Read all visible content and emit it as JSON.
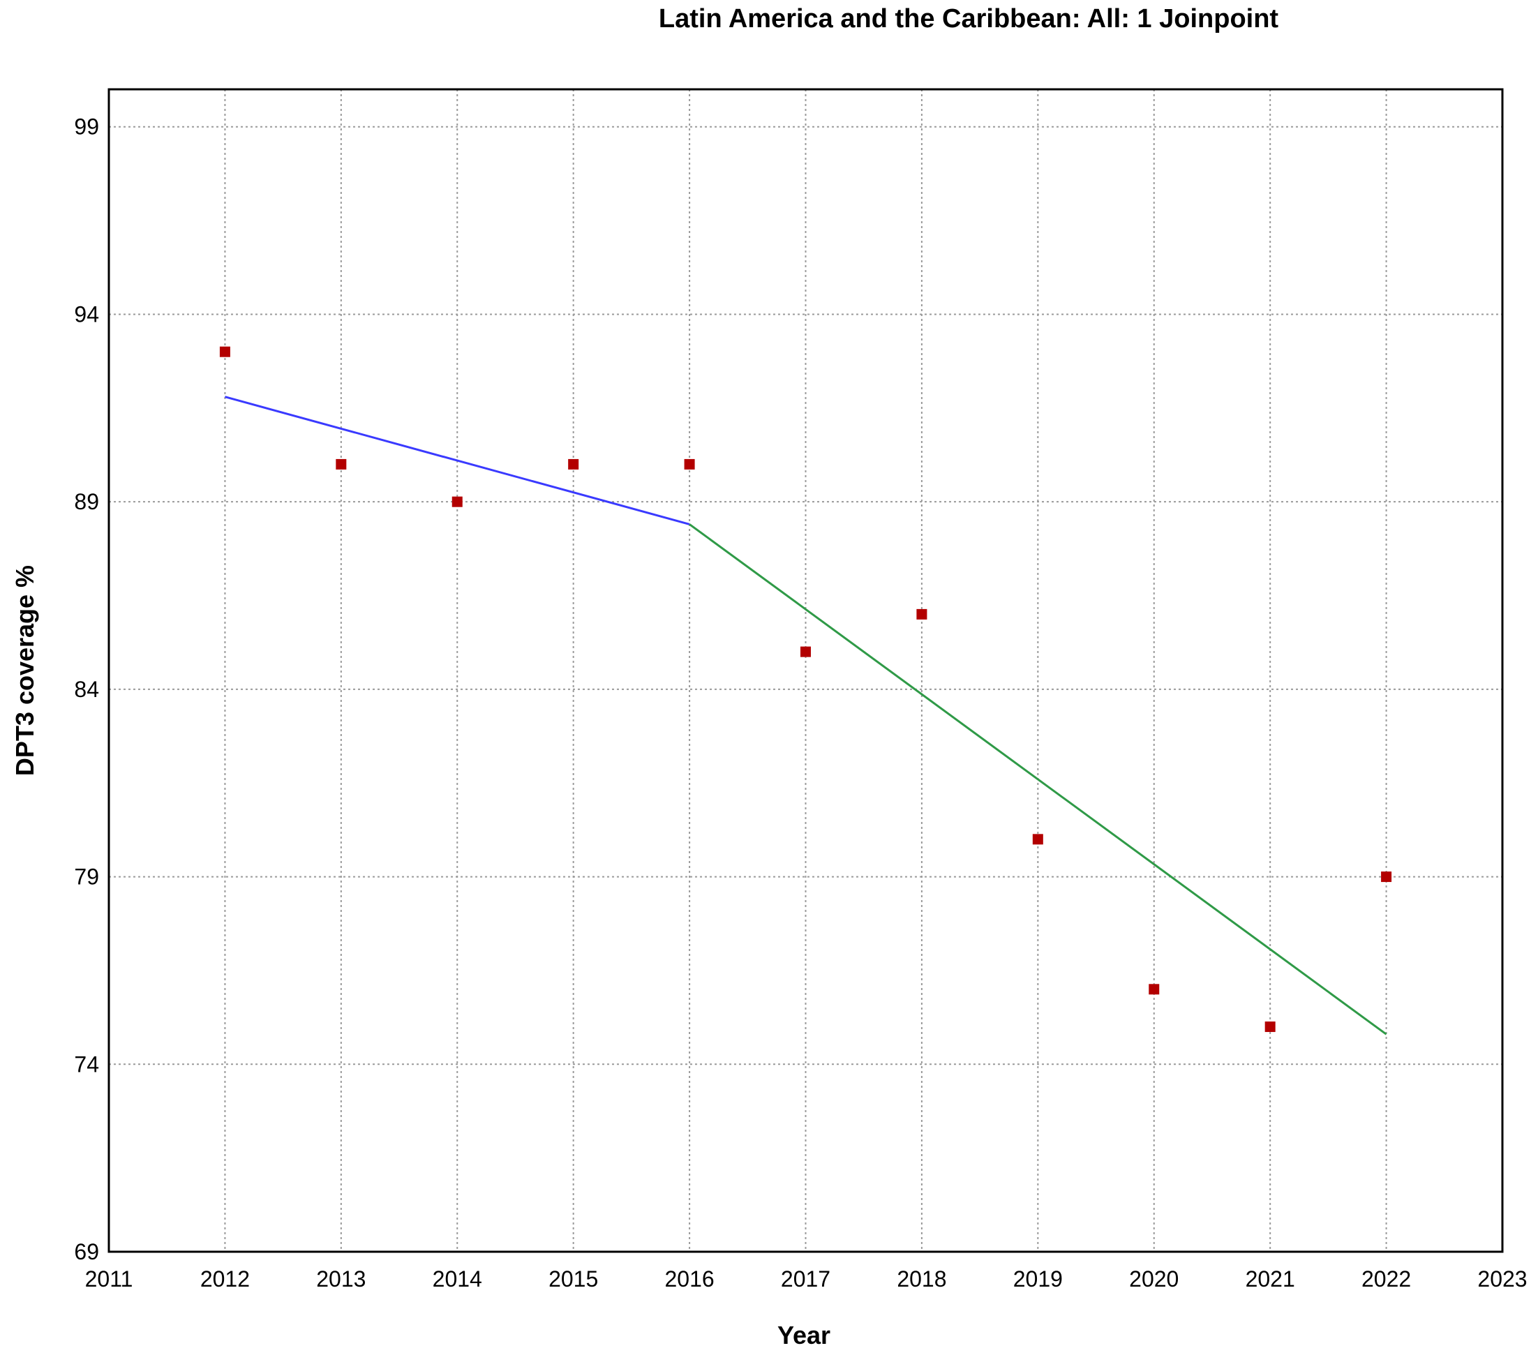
{
  "chart_data": {
    "type": "scatter",
    "title": "Latin America and the Caribbean: All: 1 Joinpoint",
    "xlabel": "Year",
    "ylabel": "DPT3 coverage %",
    "xlim": [
      2011,
      2023
    ],
    "ylim": [
      69,
      100
    ],
    "xticks": [
      "2011",
      "2012",
      "2013",
      "2014",
      "2015",
      "2016",
      "2017",
      "2018",
      "2019",
      "2020",
      "2021",
      "2022",
      "2023"
    ],
    "yticks": [
      "69",
      "74",
      "79",
      "84",
      "89",
      "94",
      "99"
    ],
    "grid": true,
    "observed": {
      "x": [
        2012,
        2013,
        2014,
        2015,
        2016,
        2017,
        2018,
        2019,
        2020,
        2021,
        2022
      ],
      "y": [
        93,
        90,
        89,
        90,
        90,
        85,
        86,
        80,
        76,
        75,
        79
      ],
      "color": "#b30000"
    },
    "segments": [
      {
        "x": [
          2012,
          2016
        ],
        "y": [
          91.8,
          88.4
        ],
        "color": "#3a3aff"
      },
      {
        "x": [
          2016,
          2022
        ],
        "y": [
          88.4,
          74.8
        ],
        "color": "#2f9a47"
      }
    ]
  }
}
